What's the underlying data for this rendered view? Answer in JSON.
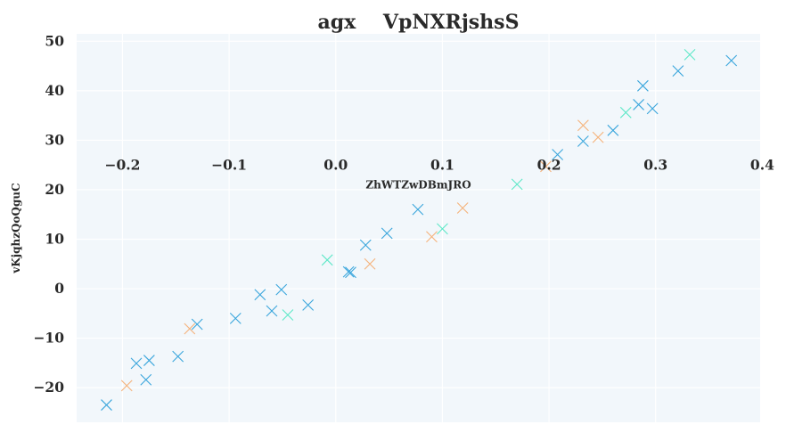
{
  "chart_data": {
    "type": "scatter",
    "title": "agx    VpNXRjshsS",
    "xlabel": "ZhWTZwDBmJRO",
    "ylabel": "vKjqhzQoQguC",
    "xlim": [
      -0.243,
      0.398
    ],
    "ylim": [
      -27.0,
      51.5
    ],
    "x_ticks": [
      "−0.2",
      "−0.1",
      "0.0",
      "0.1",
      "0.2",
      "0.3",
      "0.4"
    ],
    "x_tick_values": [
      -0.2,
      -0.1,
      0.0,
      0.1,
      0.2,
      0.3,
      0.4
    ],
    "y_ticks": [
      "50",
      "40",
      "30",
      "20",
      "10",
      "0",
      "−10",
      "−20"
    ],
    "y_tick_values": [
      50,
      40,
      30,
      20,
      10,
      0,
      -10,
      -20
    ],
    "x_axis_crosses_at_y": 23.3,
    "grid": true,
    "marker": "x",
    "colors": {
      "background": "#f2f7fb",
      "grid": "#ffffff",
      "series_blue": "#3aa6dc",
      "series_orange": "#f5b27a",
      "series_teal": "#5fe8c8"
    },
    "series": [
      {
        "color": "#3aa6dc",
        "points": [
          [
            -0.215,
            -23.5
          ],
          [
            -0.187,
            -15.1
          ],
          [
            -0.175,
            -14.5
          ],
          [
            -0.178,
            -18.4
          ],
          [
            -0.148,
            -13.7
          ],
          [
            -0.13,
            -7.2
          ],
          [
            -0.094,
            -6.0
          ],
          [
            -0.071,
            -1.2
          ],
          [
            -0.06,
            -4.5
          ],
          [
            -0.051,
            -0.2
          ],
          [
            -0.026,
            -3.3
          ],
          [
            0.012,
            3.4
          ],
          [
            0.014,
            3.3
          ],
          [
            0.028,
            8.8
          ],
          [
            0.048,
            11.2
          ],
          [
            0.077,
            16.0
          ],
          [
            0.208,
            27.1
          ],
          [
            0.232,
            29.8
          ],
          [
            0.26,
            32.0
          ],
          [
            0.284,
            37.2
          ],
          [
            0.288,
            41.0
          ],
          [
            0.297,
            36.4
          ],
          [
            0.321,
            44.0
          ],
          [
            0.371,
            46.1
          ]
        ]
      },
      {
        "color": "#f5b27a",
        "points": [
          [
            -0.196,
            -19.6
          ],
          [
            -0.137,
            -8.1
          ],
          [
            0.032,
            5.0
          ],
          [
            0.09,
            10.5
          ],
          [
            0.119,
            16.3
          ],
          [
            0.197,
            24.7
          ],
          [
            0.232,
            33.0
          ],
          [
            0.246,
            30.6
          ]
        ]
      },
      {
        "color": "#5fe8c8",
        "points": [
          [
            -0.045,
            -5.3
          ],
          [
            -0.008,
            5.8
          ],
          [
            0.1,
            12.1
          ],
          [
            0.17,
            21.1
          ],
          [
            0.272,
            35.6
          ],
          [
            0.332,
            47.3
          ]
        ]
      }
    ]
  }
}
